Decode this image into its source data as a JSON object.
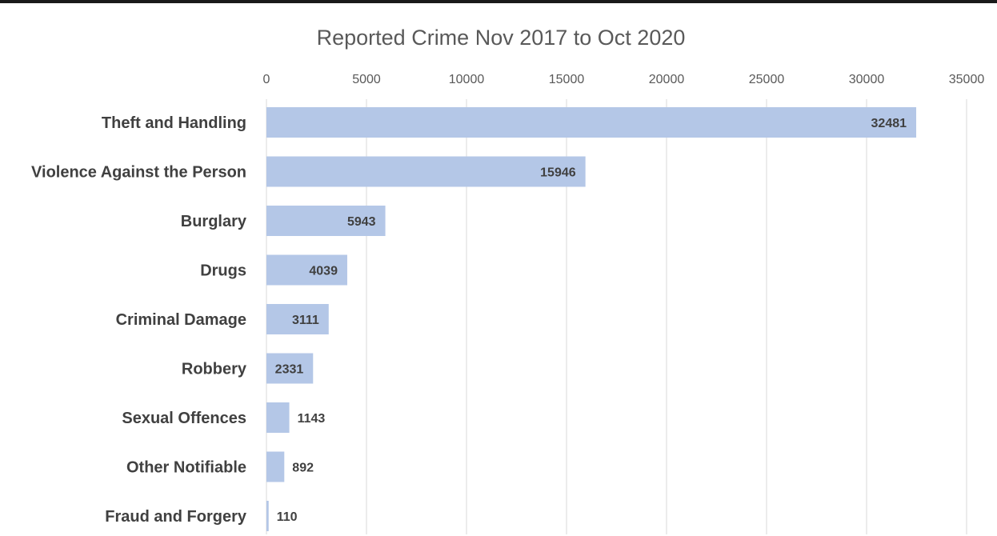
{
  "chart_data": {
    "type": "bar",
    "orientation": "horizontal",
    "title": "Reported Crime Nov 2017 to Oct 2020",
    "categories": [
      "Theft and Handling",
      "Violence Against the Person",
      "Burglary",
      "Drugs",
      "Criminal Damage",
      "Robbery",
      "Sexual Offences",
      "Other Notifiable",
      "Fraud and Forgery"
    ],
    "values": [
      32481,
      15946,
      5943,
      4039,
      3111,
      2331,
      1143,
      892,
      110
    ],
    "data_labels": [
      "32481",
      "15946",
      "5943",
      "4039",
      "3111",
      "2331",
      "1143",
      "892",
      "110"
    ],
    "xlim": [
      0,
      35000
    ],
    "x_ticks": [
      0,
      5000,
      10000,
      15000,
      20000,
      25000,
      30000,
      35000
    ],
    "x_tick_labels": [
      "0",
      "5000",
      "10000",
      "15000",
      "20000",
      "25000",
      "30000",
      "35000"
    ],
    "x_axis_position": "top",
    "grid": true,
    "bar_color": "#b4c7e7",
    "gridline_color": "#d9d9d9",
    "legend": "none"
  }
}
